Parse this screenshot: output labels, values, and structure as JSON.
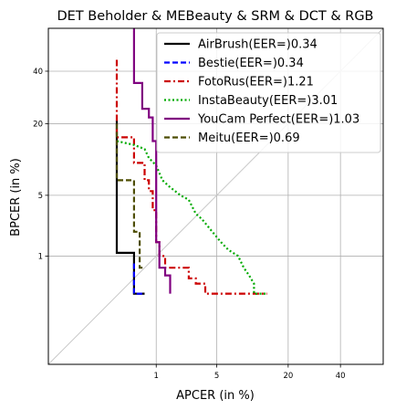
{
  "chart_data": {
    "type": "line",
    "title": "DET Beholder & MEBeauty & SRM & DCT & RGB",
    "xlabel": "APCER (in %)",
    "ylabel": "BPCER (in %)",
    "scale": "probit",
    "xlim": [
      0.02,
      59
    ],
    "ylim": [
      0.02,
      59
    ],
    "xticks": [
      1,
      5,
      20,
      40
    ],
    "yticks": [
      1,
      5,
      20,
      40
    ],
    "xtick_labels": [
      "1",
      "5",
      "20",
      "40"
    ],
    "ytick_labels": [
      "1",
      "5",
      "20",
      "40"
    ],
    "grid": true,
    "diagonal": true,
    "legend_position": "top-right",
    "series": [
      {
        "name": "AirBrush(EER=)0.34",
        "color": "#000000",
        "style": "solid",
        "points": [
          [
            0.28,
            21
          ],
          [
            0.28,
            1.1
          ],
          [
            0.5,
            1.1
          ],
          [
            0.5,
            0.3
          ],
          [
            0.7,
            0.3
          ]
        ]
      },
      {
        "name": "Bestie(EER=)0.34",
        "color": "#0000ff",
        "style": "dashed",
        "points": [
          [
            0.5,
            0.8
          ],
          [
            0.5,
            0.3
          ],
          [
            0.7,
            0.3
          ]
        ]
      },
      {
        "name": "FotoRus(EER=)1.21",
        "color": "#cc0000",
        "style": "dashdot",
        "points": [
          [
            0.28,
            45
          ],
          [
            0.28,
            16
          ],
          [
            0.5,
            16
          ],
          [
            0.5,
            10
          ],
          [
            0.7,
            10
          ],
          [
            0.7,
            7
          ],
          [
            0.8,
            7
          ],
          [
            0.8,
            5.5
          ],
          [
            0.9,
            5.5
          ],
          [
            0.9,
            3.5
          ],
          [
            1.0,
            3.5
          ],
          [
            1.0,
            1.5
          ],
          [
            1.1,
            1.5
          ],
          [
            1.1,
            1.0
          ],
          [
            1.3,
            1.0
          ],
          [
            1.3,
            0.7
          ],
          [
            2.5,
            0.7
          ],
          [
            2.5,
            0.5
          ],
          [
            3.0,
            0.5
          ],
          [
            3.0,
            0.42
          ],
          [
            3.8,
            0.42
          ],
          [
            3.8,
            0.3
          ],
          [
            14,
            0.3
          ]
        ]
      },
      {
        "name": "InstaBeauty(EER=)3.01",
        "color": "#00aa00",
        "style": "dotted",
        "points": [
          [
            0.28,
            15
          ],
          [
            0.5,
            14
          ],
          [
            0.7,
            13
          ],
          [
            0.8,
            11
          ],
          [
            1.0,
            9.5
          ],
          [
            1.2,
            7
          ],
          [
            1.5,
            6
          ],
          [
            2.0,
            5
          ],
          [
            2.5,
            4.5
          ],
          [
            3.0,
            3.2
          ],
          [
            3.5,
            2.8
          ],
          [
            4.5,
            2.0
          ],
          [
            5.5,
            1.5
          ],
          [
            6.5,
            1.2
          ],
          [
            8.0,
            1.0
          ],
          [
            9.0,
            0.7
          ],
          [
            10,
            0.55
          ],
          [
            11,
            0.42
          ],
          [
            11,
            0.3
          ],
          [
            14,
            0.3
          ]
        ]
      },
      {
        "name": "YouCam Perfect(EER=)1.03",
        "color": "#800080",
        "style": "solid",
        "points": [
          [
            0.5,
            59
          ],
          [
            0.5,
            35
          ],
          [
            0.65,
            35
          ],
          [
            0.65,
            25
          ],
          [
            0.8,
            25
          ],
          [
            0.8,
            22
          ],
          [
            0.9,
            22
          ],
          [
            0.9,
            15
          ],
          [
            1.0,
            15
          ],
          [
            1.0,
            1.5
          ],
          [
            1.1,
            1.5
          ],
          [
            1.1,
            0.7
          ],
          [
            1.3,
            0.7
          ],
          [
            1.3,
            0.55
          ],
          [
            1.5,
            0.55
          ],
          [
            1.5,
            0.3
          ]
        ]
      },
      {
        "name": "Meitu(EER=)0.69",
        "color": "#4d4d00",
        "style": "dashed",
        "points": [
          [
            0.28,
            20
          ],
          [
            0.28,
            7
          ],
          [
            0.5,
            7
          ],
          [
            0.5,
            2.0
          ],
          [
            0.6,
            2.0
          ],
          [
            0.6,
            0.7
          ],
          [
            0.7,
            0.7
          ]
        ]
      }
    ]
  }
}
